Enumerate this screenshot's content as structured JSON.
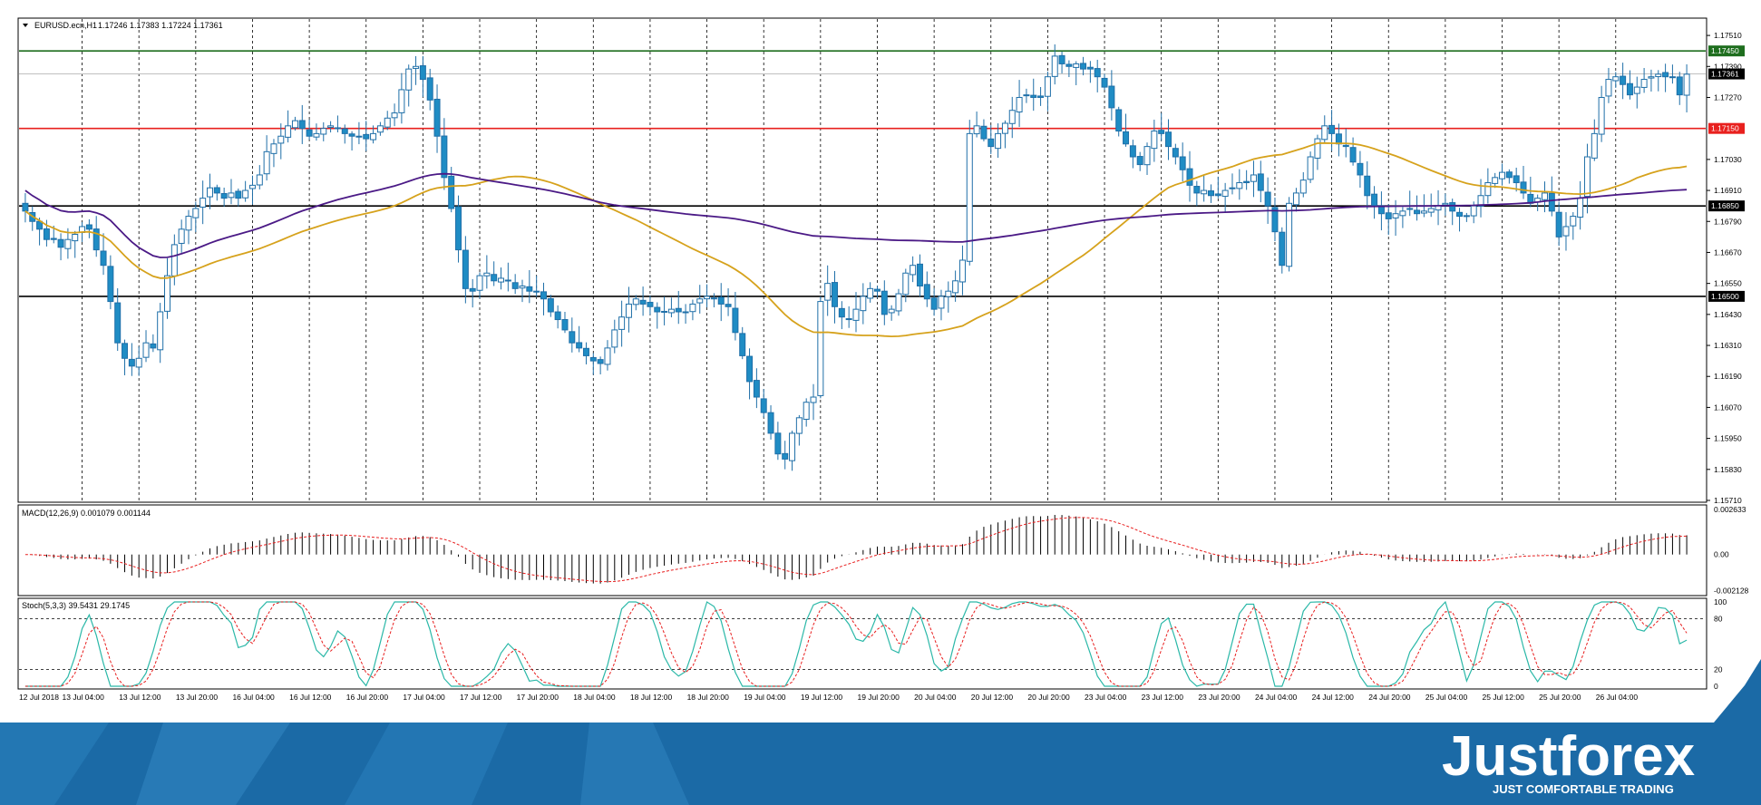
{
  "chart_data": [
    {
      "type": "candlestick",
      "title": "EURUSD.ecn,H1",
      "ohlc_text": "1.17246 1.17383 1.17224 1.17361",
      "ylim": [
        1.1571,
        1.1757
      ],
      "y_ticks": [
        "1.17510",
        "1.17390",
        "1.17270",
        "1.17030",
        "1.16910",
        "1.16790",
        "1.16670",
        "1.16550",
        "1.16430",
        "1.16310",
        "1.16190",
        "1.16070",
        "1.15950",
        "1.15830",
        "1.15710"
      ],
      "x_ticks": [
        "12 Jul 2018",
        "13 Jul 04:00",
        "13 Jul 12:00",
        "13 Jul 20:00",
        "16 Jul 04:00",
        "16 Jul 12:00",
        "16 Jul 20:00",
        "17 Jul 04:00",
        "17 Jul 12:00",
        "17 Jul 20:00",
        "18 Jul 04:00",
        "18 Jul 12:00",
        "18 Jul 20:00",
        "19 Jul 04:00",
        "19 Jul 12:00",
        "19 Jul 20:00",
        "20 Jul 04:00",
        "20 Jul 12:00",
        "20 Jul 20:00",
        "23 Jul 04:00",
        "23 Jul 12:00",
        "23 Jul 20:00",
        "24 Jul 04:00",
        "24 Jul 12:00",
        "24 Jul 20:00",
        "25 Jul 04:00",
        "25 Jul 12:00",
        "25 Jul 20:00",
        "26 Jul 04:00"
      ],
      "levels": [
        {
          "value": 1.1745,
          "label": "1.17450",
          "color": "#1e6e1e"
        },
        {
          "value": 1.17361,
          "label": "1.17361",
          "color": "#c0c0c0",
          "tag_color": "#000000"
        },
        {
          "value": 1.1715,
          "label": "1.17150",
          "color": "#e8201e"
        },
        {
          "value": 1.1685,
          "label": "1.16850",
          "color": "#000000"
        },
        {
          "value": 1.165,
          "label": "1.16500",
          "color": "#000000"
        }
      ],
      "close": [
        1.1683,
        1.1679,
        1.1676,
        1.1672,
        1.1672,
        1.1669,
        1.1672,
        1.1674,
        1.1677,
        1.1676,
        1.1668,
        1.1662,
        1.1648,
        1.1632,
        1.1626,
        1.1623,
        1.1626,
        1.1632,
        1.163,
        1.1644,
        1.1658,
        1.167,
        1.1676,
        1.1681,
        1.1684,
        1.1688,
        1.1692,
        1.169,
        1.1688,
        1.169,
        1.1688,
        1.1691,
        1.1693,
        1.1697,
        1.1706,
        1.1709,
        1.1712,
        1.1716,
        1.1718,
        1.1715,
        1.1712,
        1.1713,
        1.1715,
        1.1716,
        1.1715,
        1.1713,
        1.1712,
        1.1712,
        1.1711,
        1.1713,
        1.1716,
        1.1719,
        1.1721,
        1.173,
        1.1738,
        1.1739,
        1.1734,
        1.1726,
        1.1712,
        1.1696,
        1.1684,
        1.1668,
        1.1653,
        1.1652,
        1.1658,
        1.1659,
        1.1656,
        1.1657,
        1.1656,
        1.1653,
        1.1654,
        1.1652,
        1.1652,
        1.1649,
        1.1644,
        1.1641,
        1.1637,
        1.1632,
        1.163,
        1.1627,
        1.1625,
        1.1624,
        1.163,
        1.1637,
        1.1642,
        1.1647,
        1.1649,
        1.1647,
        1.1646,
        1.1644,
        1.1644,
        1.1645,
        1.1644,
        1.1644,
        1.1647,
        1.1649,
        1.165,
        1.1649,
        1.1647,
        1.1646,
        1.1636,
        1.1627,
        1.1617,
        1.1611,
        1.1605,
        1.1597,
        1.1589,
        1.1587,
        1.1597,
        1.1603,
        1.1609,
        1.1611,
        1.1648,
        1.1655,
        1.1646,
        1.1642,
        1.1641,
        1.1645,
        1.165,
        1.1653,
        1.1652,
        1.1643,
        1.1645,
        1.1651,
        1.1659,
        1.1662,
        1.1654,
        1.1649,
        1.1645,
        1.165,
        1.1652,
        1.1656,
        1.1664,
        1.1713,
        1.1716,
        1.1711,
        1.1708,
        1.1713,
        1.1717,
        1.1722,
        1.1727,
        1.1728,
        1.1727,
        1.1727,
        1.1735,
        1.1743,
        1.174,
        1.1739,
        1.174,
        1.1738,
        1.1738,
        1.1735,
        1.1731,
        1.1723,
        1.1714,
        1.1709,
        1.1704,
        1.1701,
        1.1708,
        1.1714,
        1.1713,
        1.1708,
        1.1704,
        1.1699,
        1.1693,
        1.169,
        1.1691,
        1.1689,
        1.1689,
        1.1691,
        1.1692,
        1.1694,
        1.1694,
        1.1697,
        1.1691,
        1.1685,
        1.1675,
        1.1662,
        1.1686,
        1.169,
        1.1695,
        1.1704,
        1.1711,
        1.1716,
        1.1713,
        1.1709,
        1.1708,
        1.1702,
        1.1697,
        1.1689,
        1.1685,
        1.1682,
        1.168,
        1.1682,
        1.1683,
        1.1684,
        1.1682,
        1.1683,
        1.1684,
        1.1685,
        1.1686,
        1.1683,
        1.1681,
        1.1681,
        1.1685,
        1.1689,
        1.1694,
        1.1696,
        1.1698,
        1.1696,
        1.1694,
        1.169,
        1.1686,
        1.1688,
        1.169,
        1.1683,
        1.1673,
        1.1677,
        1.1681,
        1.1688,
        1.1704,
        1.1713,
        1.1727,
        1.1734,
        1.1735,
        1.1732,
        1.1728,
        1.1731,
        1.1734,
        1.1735,
        1.1736,
        1.1735,
        1.1735,
        1.1728,
        1.1736
      ]
    },
    {
      "type": "macd",
      "label": "MACD(12,26,9) 0.001079 0.001144",
      "y_ticks": [
        "0.002633",
        "0.00",
        "-0.002128"
      ],
      "ylim": [
        -0.00225,
        0.00275
      ]
    },
    {
      "type": "stochastic",
      "label": "Stoch(5,3,3) 39.5431 29.1745",
      "y_ticks": [
        "100",
        "80",
        "20",
        "0"
      ],
      "ylim": [
        0,
        100
      ]
    }
  ],
  "brand": {
    "name": "Justforex",
    "tagline": "JUST COMFORTABLE TRADING"
  },
  "colors": {
    "up": "#1f8cc4",
    "down": "#1f6fa8",
    "ma_fast": "#d6a21c",
    "ma_slow": "#4b1a86",
    "stoch_main": "#2bb8a8",
    "stoch_signal": "#e81e1e",
    "macd_signal": "#e81e1e",
    "banner": "#1b6aa6"
  }
}
